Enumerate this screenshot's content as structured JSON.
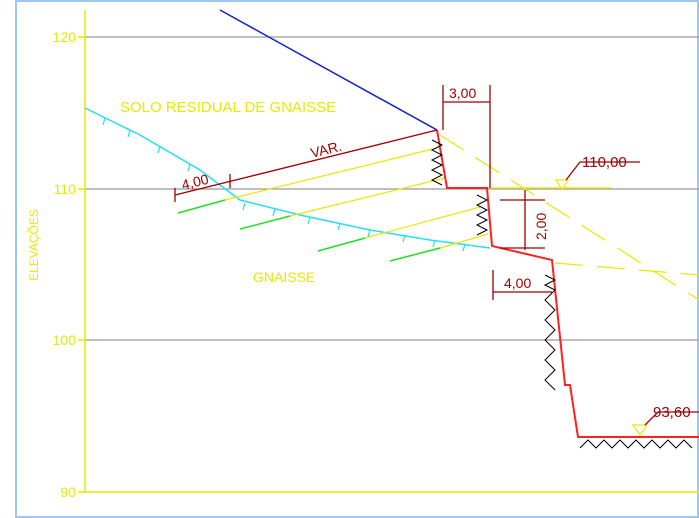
{
  "axis": {
    "label": "ELEVAÇÕES",
    "ticks": [
      "120",
      "110",
      "100",
      "90"
    ]
  },
  "labels": {
    "soil": "SOLO RESIDUAL DE GNAISSE",
    "rock": "GNAISSE",
    "top_width": "3,00",
    "var": "VAR.",
    "nail_free": "4,00",
    "level_top": "110,00",
    "bench_height": "2,00",
    "bench_width": "4,00",
    "level_bottom": "93,60"
  }
}
